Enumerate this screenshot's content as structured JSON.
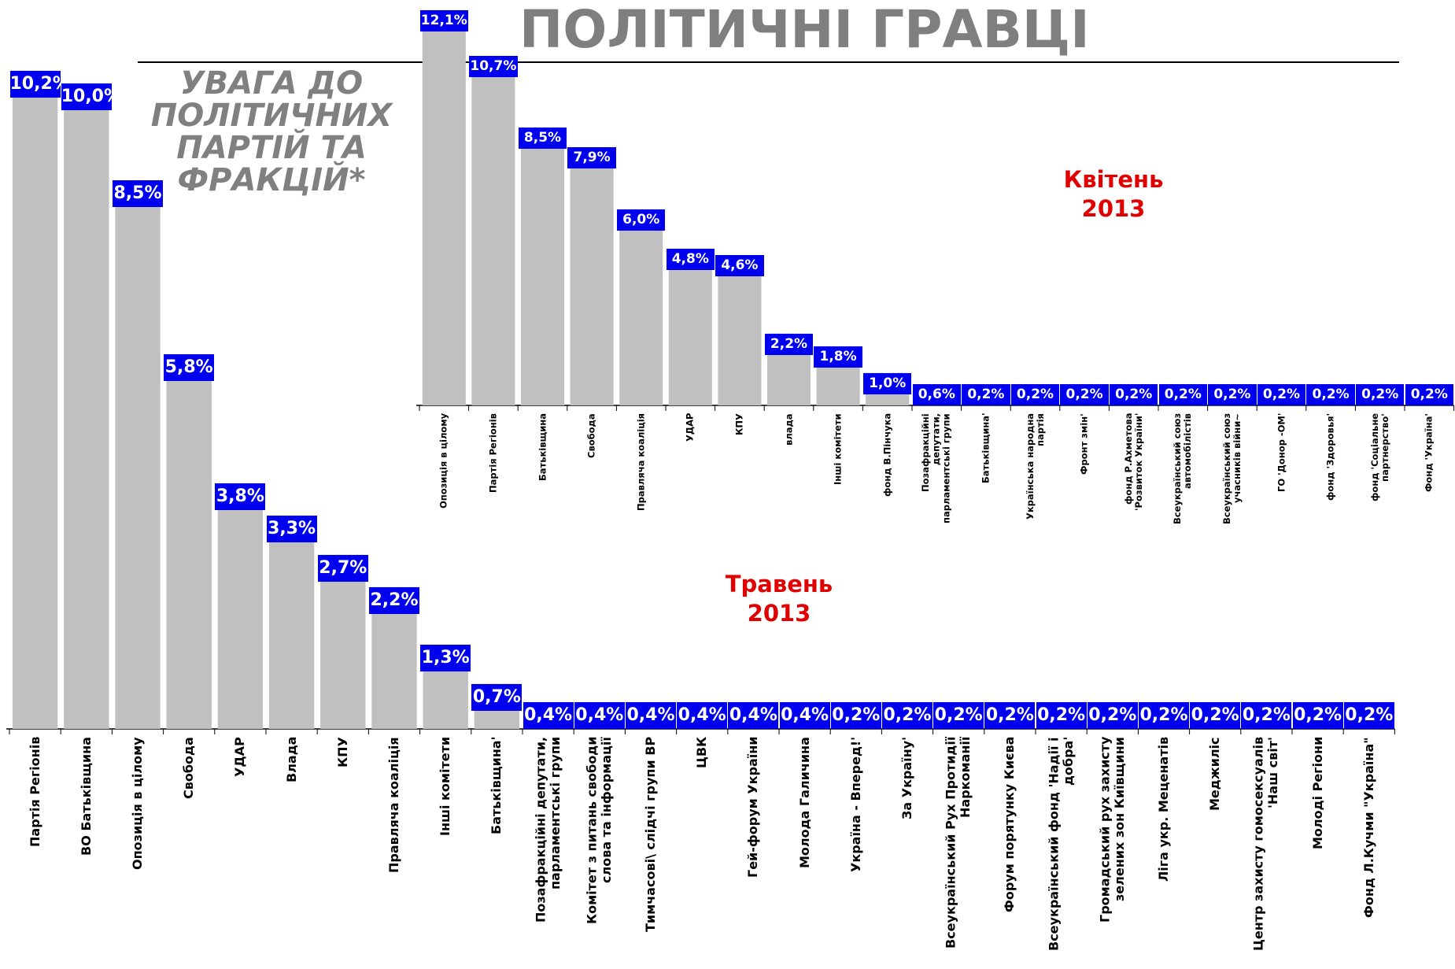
{
  "header": {
    "title": "ПОЛІТИЧНІ ГРАВЦІ",
    "subtitle": "УВАГА ДО ПОЛІТИЧНИХ ПАРТІЙ ТА ФРАКЦІЙ*"
  },
  "chart_data": [
    {
      "type": "bar",
      "title": "Травень 2013",
      "color": "#c0c0c0",
      "categories": [
        "Партія Регіонів",
        "ВО Батьківщина",
        "Опозиція в цілому",
        "Свобода",
        "УДАР",
        "Влада",
        "КПУ",
        "Правляча коаліція",
        "Інші комітети",
        "Батьківщина'",
        "Позафракційні депутати, парламентські групи",
        "Комітет з питань свободи слова та інформації",
        "Тимчасові\\ слідчі групи ВР",
        "ЦВК",
        "Гей-форум України",
        "Молода Галичина",
        "Україна - Вперед!'",
        "За Україну'",
        "Всеукраїнський Рух Протидії Наркоманії",
        "Форум порятунку Києва",
        "Всеукраїнський фонд 'Надії і добра'",
        "Громадський рух захисту зелених зон Київщини",
        "Ліга укр. Меценатів",
        "Меджиліс",
        "Центр захисту гомосексуалів 'Наш світ'",
        "Молоді Регіони",
        "Фонд Л.Кучми \"Україна\""
      ],
      "values": [
        10.2,
        10.0,
        8.5,
        5.8,
        3.8,
        3.3,
        2.7,
        2.2,
        1.3,
        0.7,
        0.4,
        0.4,
        0.4,
        0.4,
        0.4,
        0.4,
        0.2,
        0.2,
        0.2,
        0.2,
        0.2,
        0.2,
        0.2,
        0.2,
        0.2,
        0.2,
        0.2
      ],
      "value_labels": [
        "10,2%",
        "10,0%",
        "8,5%",
        "5,8%",
        "3,8%",
        "3,3%",
        "2,7%",
        "2,2%",
        "1,3%",
        "0,7%",
        "0,4%",
        "0,4%",
        "0,4%",
        "0,4%",
        "0,4%",
        "0,4%",
        "0,2%",
        "0,2%",
        "0,2%",
        "0,2%",
        "0,2%",
        "0,2%",
        "0,2%",
        "0,2%",
        "0,2%",
        "0,2%",
        "0,2%"
      ]
    },
    {
      "type": "bar",
      "title": "Квітень 2013",
      "color": "#c0c0c0",
      "categories": [
        "Опозиція в цілому",
        "Партія Регіонів",
        "Батьківщина",
        "Свобода",
        "Правляча коаліція",
        "УДАР",
        "КПУ",
        "влада",
        "Інші комітети",
        "фонд В.Пінчука",
        "Позафракційні депутати, парламентські групи",
        "Батьківщина'",
        "Українська народна партія",
        "Фронт змін'",
        "фонд Р.Ахметова 'Розвиток України'",
        "Всеукраїнський союз автомобілістів",
        "Всеукраїнський союз учасників війни~",
        "ГО 'Донор -ОМ'",
        "фонд 'Здоровья'",
        "фонд 'Соціальне партнерство'",
        "Фонд 'Україна'"
      ],
      "values": [
        12.1,
        10.7,
        8.5,
        7.9,
        6.0,
        4.8,
        4.6,
        2.2,
        1.8,
        1.0,
        0.6,
        0.2,
        0.2,
        0.2,
        0.2,
        0.2,
        0.2,
        0.2,
        0.2,
        0.2,
        0.2
      ],
      "value_labels": [
        "12,1%",
        "10,7%",
        "8,5%",
        "7,9%",
        "6,0%",
        "4,8%",
        "4,6%",
        "2,2%",
        "1,8%",
        "1,0%",
        "0,6%",
        "0,2%",
        "0,2%",
        "0,2%",
        "0,2%",
        "0,2%",
        "0,2%",
        "0,2%",
        "0,2%",
        "0,2%",
        "0,2%"
      ]
    }
  ]
}
